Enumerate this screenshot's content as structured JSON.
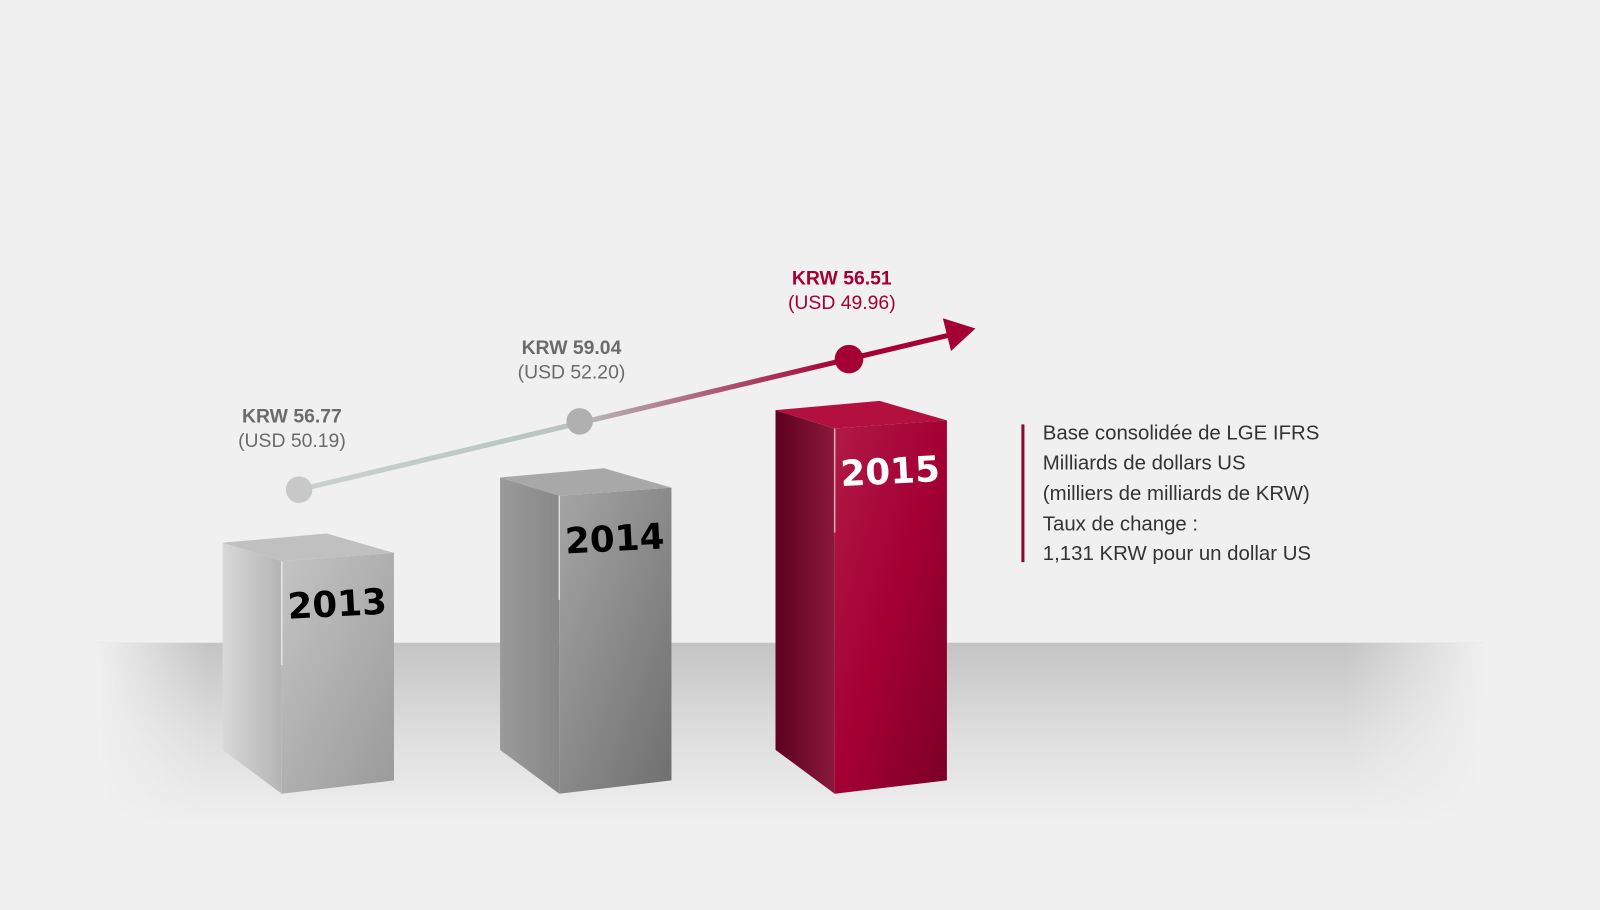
{
  "chart_data": {
    "type": "bar",
    "categories": [
      "2013",
      "2014",
      "2015"
    ],
    "series": [
      {
        "values": [
          56.77,
          59.04,
          56.51
        ],
        "labels": [
          "KRW 56.77",
          "KRW 59.04",
          "KRW 56.51"
        ]
      },
      {
        "values": [
          50.19,
          52.2,
          49.96
        ],
        "labels": [
          "(USD 50.19)",
          "(USD 52.20)",
          "(USD 49.96)"
        ]
      }
    ],
    "colors": {
      "past": "#6b6b6b",
      "current": "#a50034",
      "past_dot": "#c8c8c8",
      "current_dot": "#a50034"
    },
    "trend_arrow": true,
    "notes": [
      "Base consolidée de LGE IFRS",
      "Milliards de dollars US",
      "(milliers de milliards de KRW)",
      "Taux de change :",
      "1,131 KRW pour un dollar US"
    ]
  }
}
